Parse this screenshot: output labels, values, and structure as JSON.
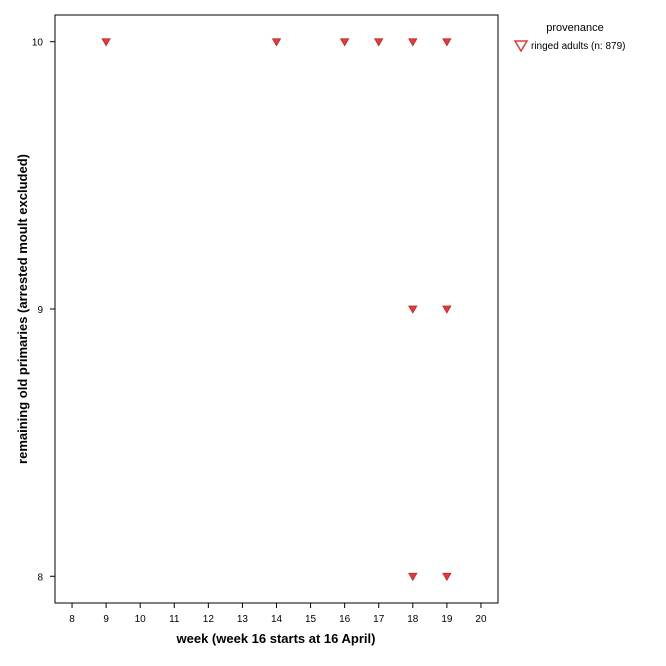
{
  "chart_data": {
    "type": "scatter",
    "xlabel": "week (week 16 starts at 16 April)",
    "ylabel": "remaining old primaries (arrested moult excluded)",
    "xlim": [
      7.5,
      20.5
    ],
    "ylim": [
      7.9,
      10.1
    ],
    "x_ticks": [
      "8",
      "9",
      "10",
      "11",
      "12",
      "13",
      "14",
      "15",
      "16",
      "17",
      "18",
      "19",
      "20"
    ],
    "y_ticks": [
      "8",
      "9",
      "10"
    ],
    "legend": {
      "title": "provenance",
      "position": "top-right, outside plot",
      "entries": [
        {
          "label": "ringed adults (n: 879)",
          "marker": "triangle-down",
          "color": "#e8383b"
        }
      ]
    },
    "series": [
      {
        "name": "ringed adults (n: 879)",
        "marker": "triangle-down",
        "color": "#e8383b",
        "points": [
          {
            "x": 9,
            "y": 10
          },
          {
            "x": 14,
            "y": 10
          },
          {
            "x": 16,
            "y": 10
          },
          {
            "x": 17,
            "y": 10
          },
          {
            "x": 18,
            "y": 10
          },
          {
            "x": 19,
            "y": 10
          },
          {
            "x": 18,
            "y": 9
          },
          {
            "x": 19,
            "y": 9
          },
          {
            "x": 18,
            "y": 8
          },
          {
            "x": 19,
            "y": 8
          }
        ]
      }
    ]
  }
}
